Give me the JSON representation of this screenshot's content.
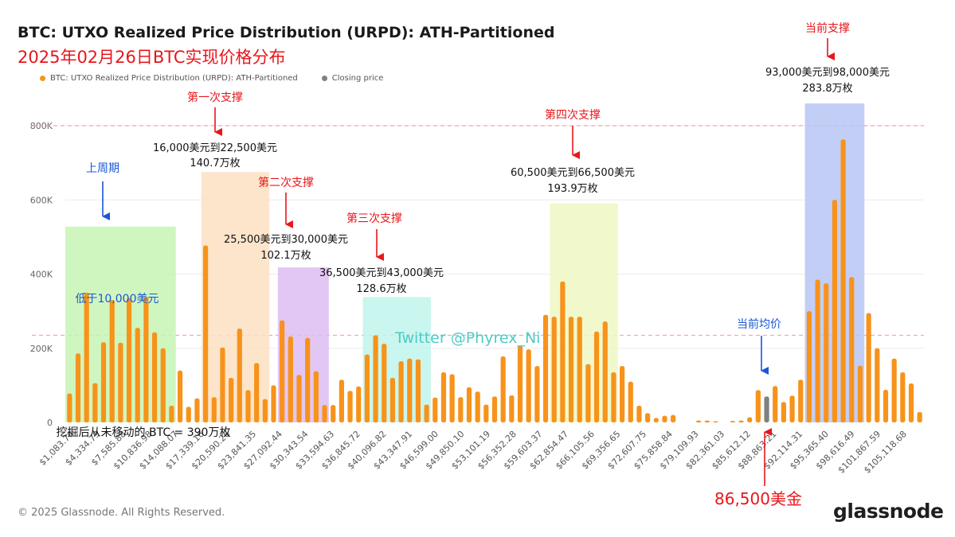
{
  "header": {
    "title": "BTC: UTXO Realized Price Distribution (URPD): ATH-Partitioned",
    "subtitle": "2025年02月26日BTC实现价格分布"
  },
  "legend": {
    "items": [
      {
        "label": "BTC: UTXO Realized Price Distribution (URPD): ATH-Partitioned",
        "color": "#f7931a"
      },
      {
        "label": "Closing price",
        "color": "#808080"
      }
    ]
  },
  "footer": {
    "copyright": "© 2025 Glassnode. All Rights Reserved.",
    "logo": "glassnode"
  },
  "chart_data": {
    "type": "bar",
    "title": "BTC: UTXO Realized Price Distribution (URPD): ATH-Partitioned",
    "ylim": [
      0,
      800000
    ],
    "y_ticks": [
      {
        "value": 0,
        "label": "0"
      },
      {
        "value": 200000,
        "label": "200K"
      },
      {
        "value": 400000,
        "label": "400K"
      },
      {
        "value": 600000,
        "label": "600K"
      },
      {
        "value": 800000,
        "label": "800K"
      }
    ],
    "x_tick_labels": [
      "$1,083.76",
      "$4,334.79",
      "$7,585.88",
      "$10,836.98",
      "$14,088.07",
      "$17,339.16",
      "$20,590.26",
      "$23,841.35",
      "$27,092.44",
      "$30,343.54",
      "$33,594.63",
      "$36,845.72",
      "$40,096.82",
      "$43,347.91",
      "$46,599.00",
      "$49,850.10",
      "$53,101.19",
      "$56,352.28",
      "$59,603.37",
      "$62,854.47",
      "$66,105.56",
      "$69,356.65",
      "$72,607.75",
      "$75,858.84",
      "$79,109.93",
      "$82,361.03",
      "$85,612.12",
      "$88,863.21",
      "$92,114.31",
      "$95,365.40",
      "$98,616.49",
      "$101,867.59",
      "$105,118.68"
    ],
    "values": [
      78000,
      186000,
      350000,
      106000,
      216000,
      330000,
      215000,
      335000,
      255000,
      338000,
      243000,
      200000,
      45000,
      140000,
      42000,
      65000,
      477000,
      68000,
      202000,
      120000,
      253000,
      87000,
      160000,
      63000,
      100000,
      275000,
      232000,
      128000,
      228000,
      138000,
      47000,
      47000,
      115000,
      85000,
      97000,
      183000,
      235000,
      212000,
      120000,
      165000,
      172000,
      170000,
      48000,
      67000,
      135000,
      130000,
      68000,
      95000,
      83000,
      48000,
      70000,
      178000,
      73000,
      207000,
      197000,
      152000,
      290000,
      285000,
      380000,
      285000,
      285000,
      157000,
      245000,
      272000,
      135000,
      152000,
      110000,
      45000,
      25000,
      12000,
      18000,
      20000,
      0,
      0,
      5000,
      5000,
      3000,
      0,
      4000,
      5000,
      14000,
      87000,
      70000,
      98000,
      55000,
      72000,
      115000,
      300000,
      385000,
      375000,
      600000,
      763000,
      392000,
      153000,
      295000,
      200000,
      88000,
      172000,
      135000,
      105000,
      28000
    ],
    "closing_price_index": 82,
    "series": [
      {
        "name": "BTC: UTXO Realized Price Distribution (URPD): ATH-Partitioned",
        "color": "#f7931a"
      },
      {
        "name": "Closing price",
        "color": "#808080"
      }
    ],
    "reference_lines": [
      800000,
      235000
    ],
    "zones": [
      {
        "from_index": 0,
        "to_index": 12,
        "color": "#c8f5b4",
        "top_value": 528000
      },
      {
        "from_index": 16,
        "to_index": 23,
        "color": "#fde0c2",
        "top_value": 675000
      },
      {
        "from_index": 25,
        "to_index": 30,
        "color": "#ddbcf2",
        "top_value": 418000
      },
      {
        "from_index": 35,
        "to_index": 42,
        "color": "#bff5eb",
        "top_value": 338000
      },
      {
        "from_index": 57,
        "to_index": 64,
        "color": "#eef7c2",
        "top_value": 590000
      },
      {
        "from_index": 87,
        "to_index": 93,
        "color": "#b9c5f5",
        "top_value": 860000
      }
    ]
  },
  "annotations": {
    "previous_cycle": {
      "label": "上周期",
      "note": "低于10,000美元"
    },
    "support_1": {
      "label": "第一次支撑",
      "range": "16,000美元到22,500美元",
      "amount": "140.7万枚"
    },
    "support_2": {
      "label": "第二次支撑",
      "range": "25,500美元到30,000美元",
      "amount": "102.1万枚"
    },
    "support_3": {
      "label": "第三次支撑",
      "range": "36,500美元到43,000美元",
      "amount": "128.6万枚"
    },
    "support_4": {
      "label": "第四次支撑",
      "range": "60,500美元到66,500美元",
      "amount": "193.9万枚"
    },
    "current_support": {
      "label": "当前支撑",
      "range": "93,000美元到98,000美元",
      "amount": "283.8万枚"
    },
    "current_average": {
      "label": "当前均价"
    },
    "mined_unmoved": "挖掘后从未移动的 BTC = 390万枚",
    "watermark": "Twitter @Phyrex_Ni",
    "closing_price_label": "86,500美金",
    "colors": {
      "red": "#e8161b",
      "blue": "#1a57d6",
      "bar": "#f7931a",
      "closing": "#808080"
    }
  }
}
